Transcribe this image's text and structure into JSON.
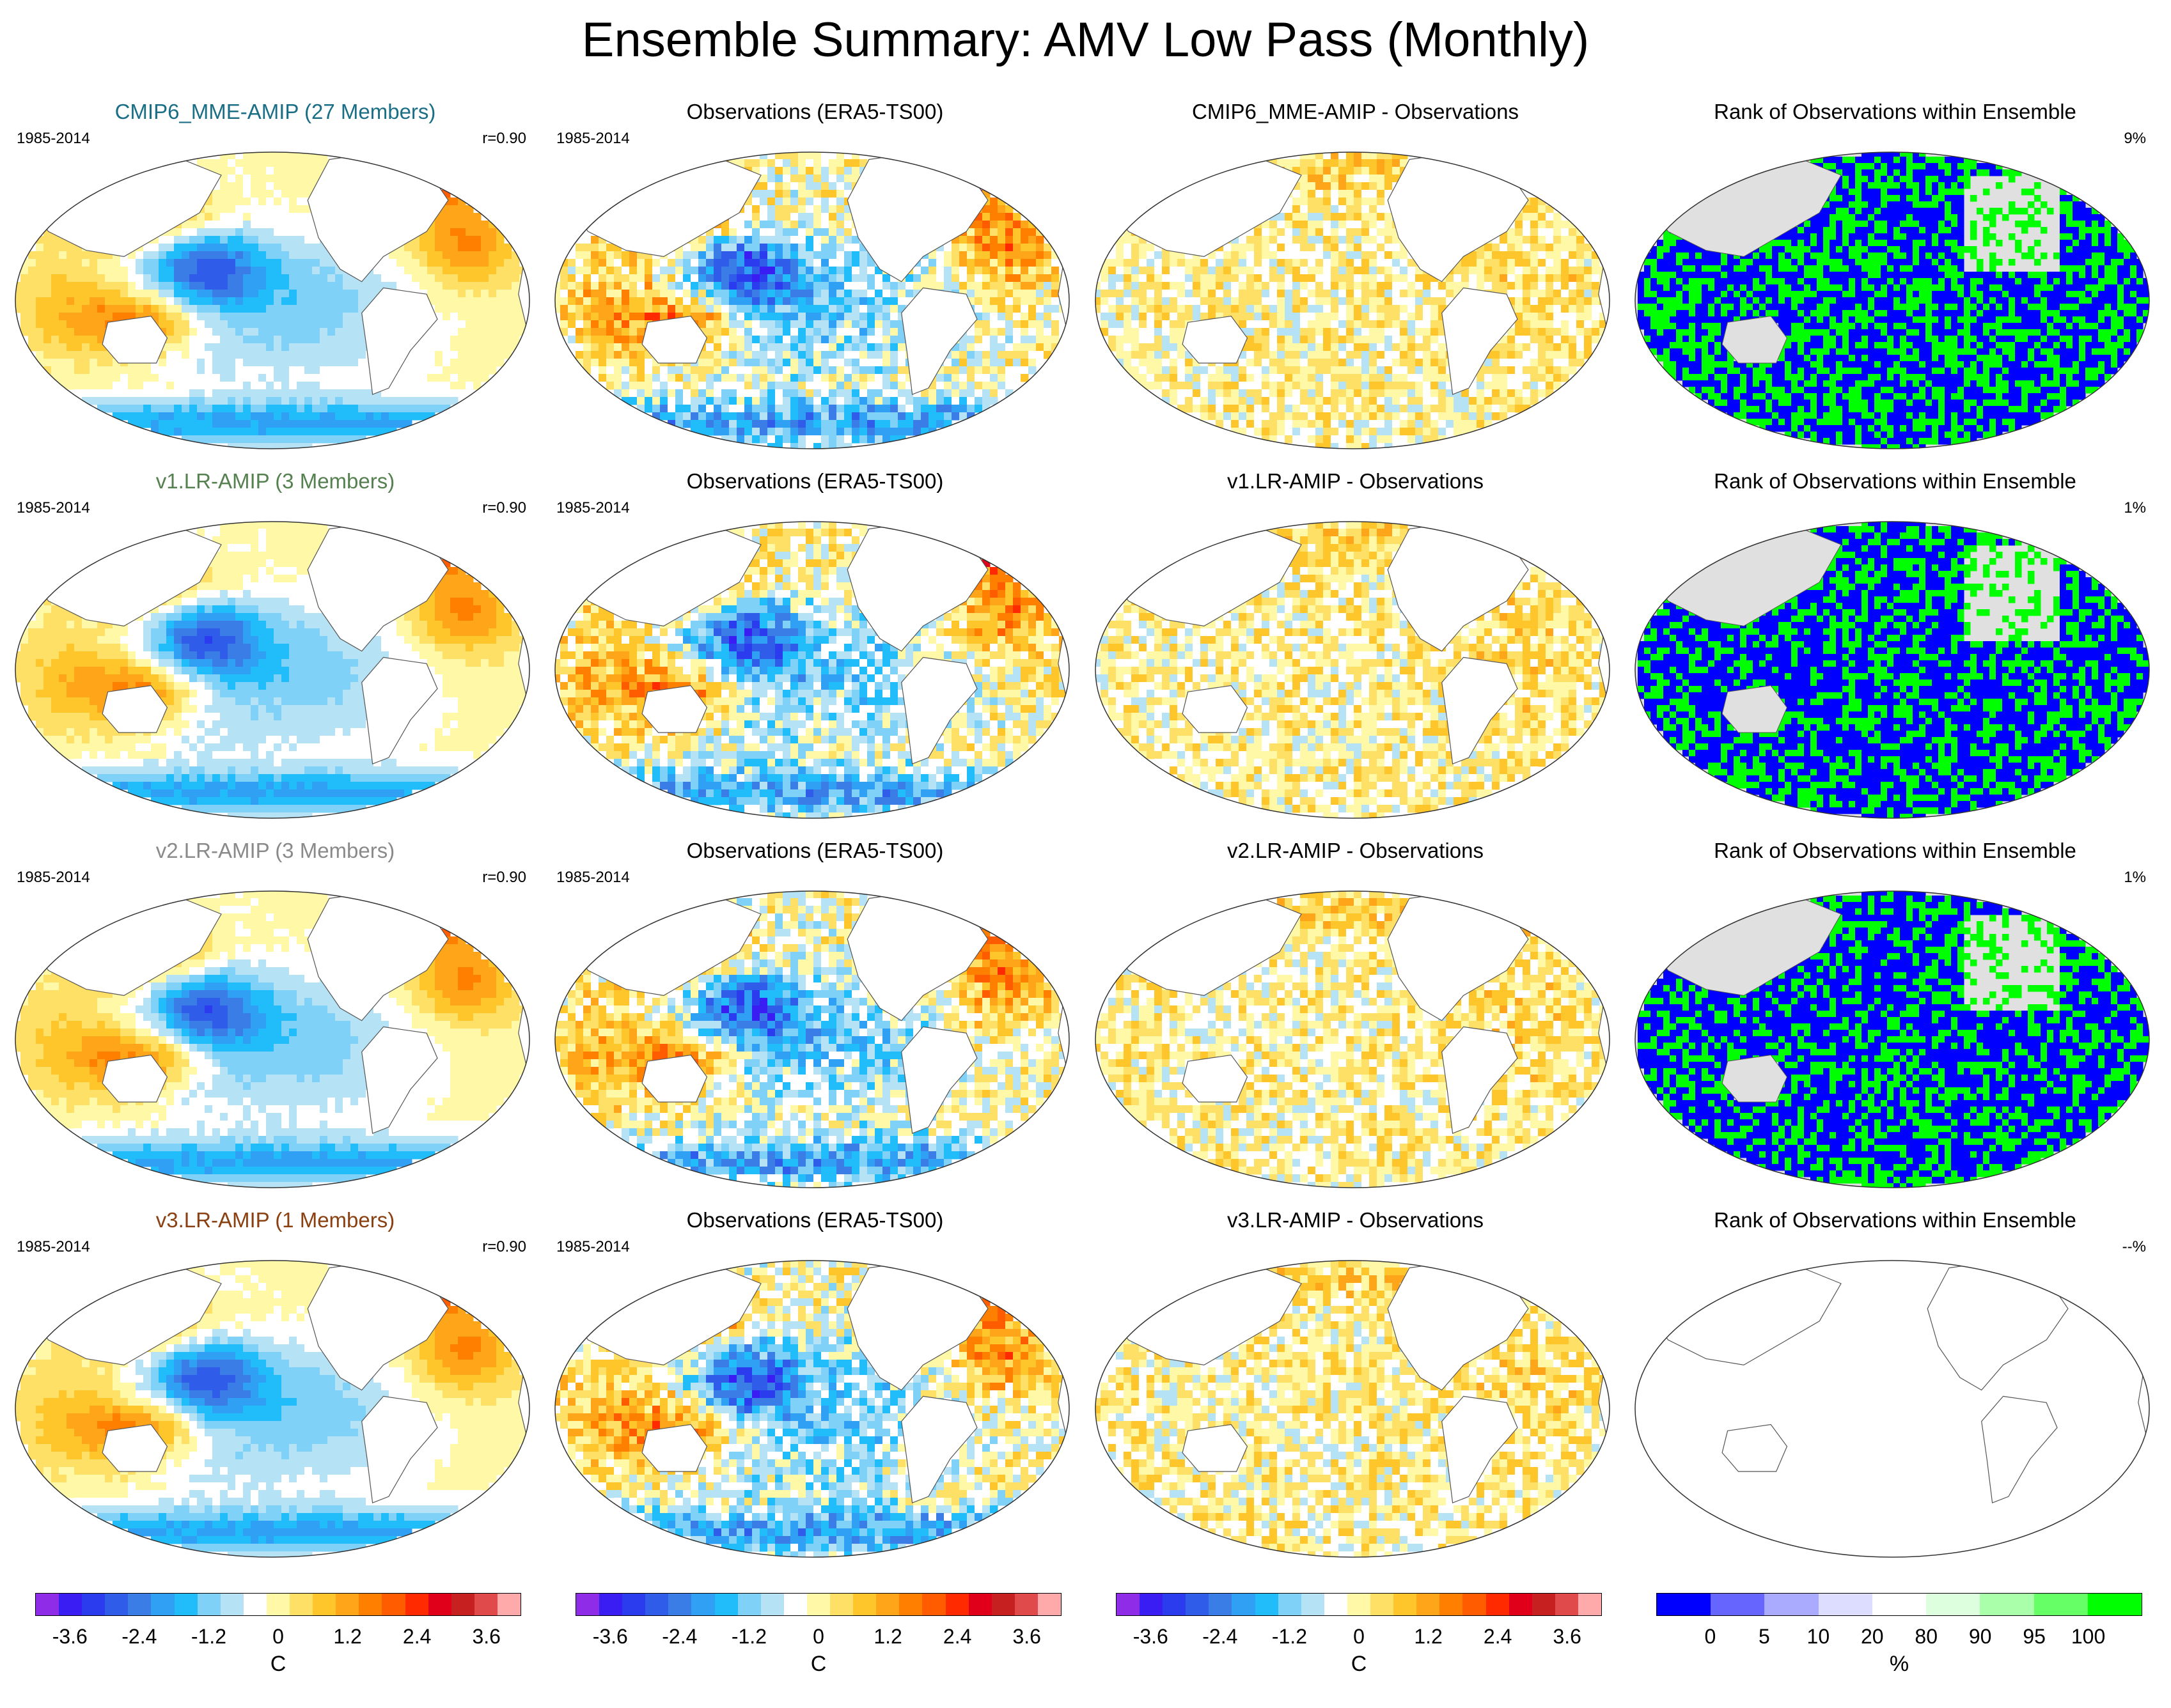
{
  "title": "Ensemble Summary: AMV Low Pass (Monthly)",
  "colors": {
    "cmip6_title": "#1a6e86",
    "v1_title": "#55804f",
    "v2_title": "#8a8a8a",
    "v3_title": "#8b4012",
    "black": "#000000",
    "ocean_land_mask": "#e0e0e0",
    "rank_low": "#0000ff",
    "rank_high": "#00ff00"
  },
  "rows": [
    {
      "model_title": "CMIP6_MME-AMIP (27 Members)",
      "model_title_color_key": "cmip6_title",
      "period": "1985-2014",
      "r": "r=0.90",
      "obs_title": "Observations (ERA5-TS00)",
      "obs_period": "1985-2014",
      "diff_title": "CMIP6_MME-AMIP - Observations",
      "rank_title": "Rank of Observations within Ensemble",
      "rank_value": "9%",
      "rank_filled": true,
      "rank_green_fraction": 0.45
    },
    {
      "model_title": "v1.LR-AMIP (3 Members)",
      "model_title_color_key": "v1_title",
      "period": "1985-2014",
      "r": "r=0.90",
      "obs_title": "Observations (ERA5-TS00)",
      "obs_period": "1985-2014",
      "diff_title": "v1.LR-AMIP - Observations",
      "rank_title": "Rank of Observations within Ensemble",
      "rank_value": "1%",
      "rank_filled": true,
      "rank_green_fraction": 0.4
    },
    {
      "model_title": "v2.LR-AMIP (3 Members)",
      "model_title_color_key": "v2_title",
      "period": "1985-2014",
      "r": "r=0.90",
      "obs_title": "Observations (ERA5-TS00)",
      "obs_period": "1985-2014",
      "diff_title": "v2.LR-AMIP - Observations",
      "rank_title": "Rank of Observations within Ensemble",
      "rank_value": "1%",
      "rank_filled": true,
      "rank_green_fraction": 0.4
    },
    {
      "model_title": "v3.LR-AMIP (1 Members)",
      "model_title_color_key": "v3_title",
      "period": "1985-2014",
      "r": "r=0.90",
      "obs_title": "Observations (ERA5-TS00)",
      "obs_period": "1985-2014",
      "diff_title": "v3.LR-AMIP - Observations",
      "rank_title": "Rank of Observations within Ensemble",
      "rank_value": "--%",
      "rank_filled": false,
      "rank_green_fraction": 0
    }
  ],
  "chart_data": {
    "type": "heatmap",
    "title": "Ensemble Summary: AMV Low Pass (Monthly)",
    "projection": "robinson-like global map, Pacific-centered",
    "period": "1985-2014",
    "temperature_colorbar": {
      "unit": "C",
      "range": [
        -4.2,
        4.2
      ],
      "tick_values": [
        -3.6,
        -2.4,
        -1.2,
        0,
        1.2,
        2.4,
        3.6
      ],
      "tick_labels": [
        "-3.6",
        "-2.4",
        "-1.2",
        "0",
        "1.2",
        "2.4",
        "3.6"
      ],
      "colors": [
        "#8e2ce8",
        "#3a1df2",
        "#2b3bee",
        "#2f5ce8",
        "#3b7de6",
        "#2fa0f4",
        "#20bdfa",
        "#7fd1f7",
        "#b5e2f5",
        "#ffffff",
        "#fff8a6",
        "#ffe066",
        "#ffc62c",
        "#ffa51a",
        "#ff7f00",
        "#ff5c00",
        "#ff2a00",
        "#e0001a",
        "#c62020",
        "#e04a4a",
        "#ffaaaa"
      ]
    },
    "rank_colorbar": {
      "unit": "%",
      "tick_labels": [
        "0",
        "5",
        "10",
        "20",
        "80",
        "90",
        "95",
        "100"
      ],
      "tick_values": [
        0,
        5,
        10,
        20,
        80,
        90,
        95,
        100
      ],
      "colors": [
        "#0000ff",
        "#6666ff",
        "#aaaaff",
        "#ddddff",
        "#ffffff",
        "#ddffdd",
        "#aaffaa",
        "#66ff66",
        "#00ff00"
      ]
    },
    "pattern_correlation": [
      0.9,
      0.9,
      0.9,
      0.9
    ],
    "rank_percent": [
      "9%",
      "1%",
      "1%",
      "--%"
    ]
  }
}
